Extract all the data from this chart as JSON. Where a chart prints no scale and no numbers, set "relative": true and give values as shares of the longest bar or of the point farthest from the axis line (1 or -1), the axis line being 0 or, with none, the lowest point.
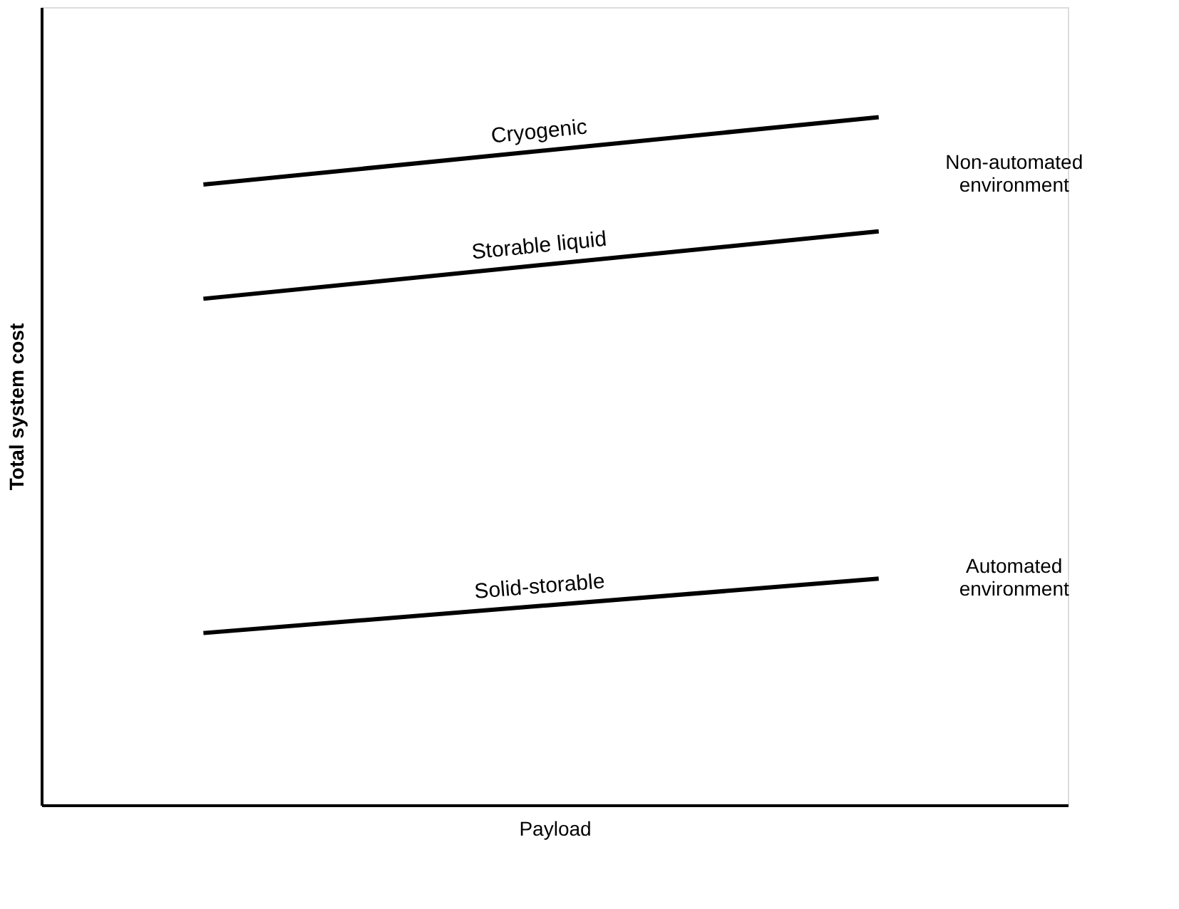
{
  "chart_data": {
    "type": "line",
    "relative": true,
    "xlabel": "Payload",
    "ylabel": "Total system cost",
    "categories": [
      null,
      null
    ],
    "series": [
      {
        "name": "Cryogenic",
        "color": "#000000",
        "values": [
          0.902,
          1.0
        ]
      },
      {
        "name": "Storable liquid",
        "color": "#000000",
        "values": [
          0.736,
          0.834
        ]
      },
      {
        "name": "Solid-storable",
        "color": "#000000",
        "values": [
          0.25,
          0.329
        ]
      }
    ],
    "annotations": [
      "Non-automated environment",
      "Automated environment"
    ],
    "legend": false,
    "grid": false,
    "marker": "none",
    "line_style": "solid"
  }
}
